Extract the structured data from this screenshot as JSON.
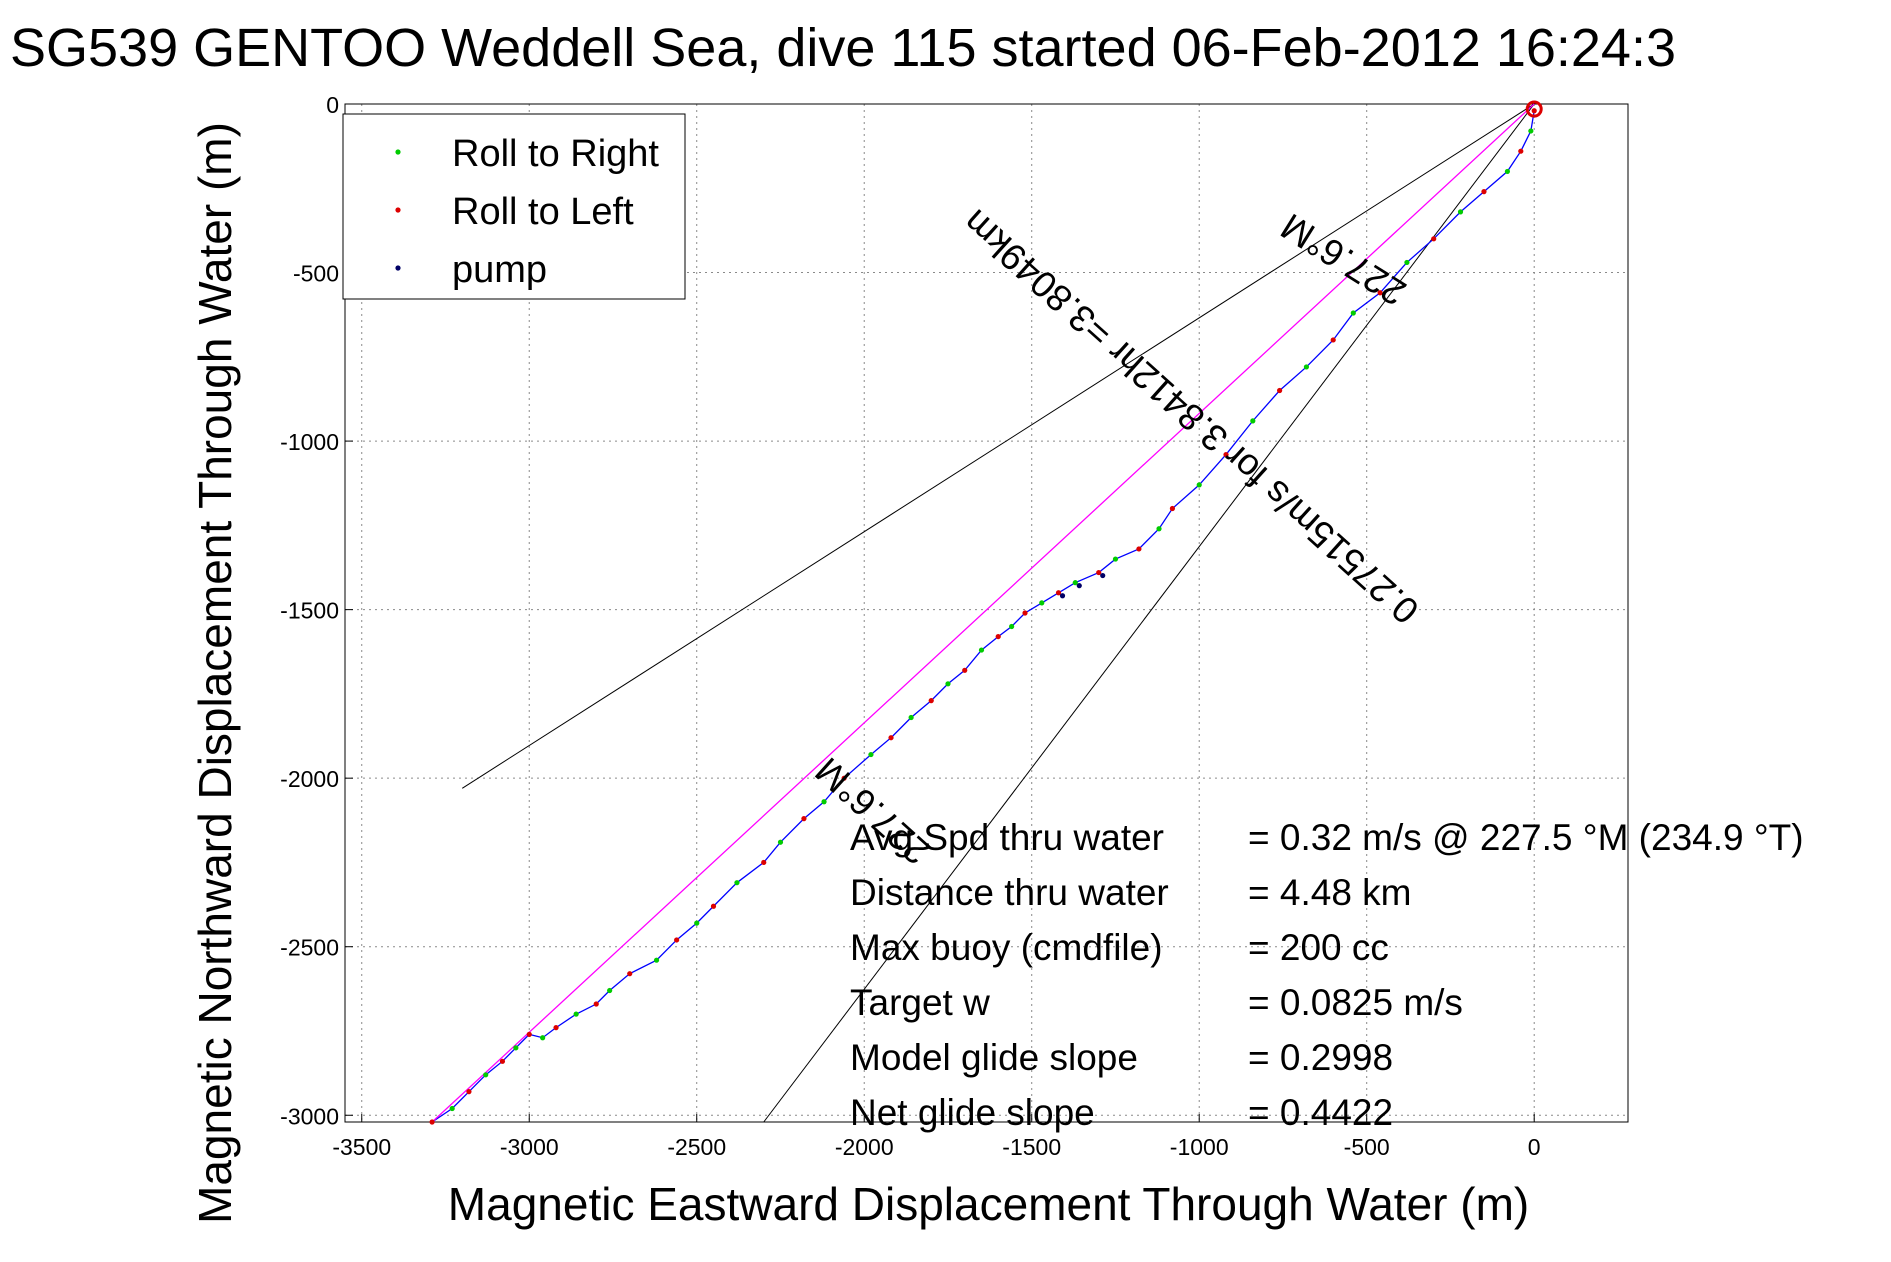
{
  "chart_data": {
    "type": "line",
    "title": "SG539 GENTOO Weddell Sea, dive 115 started 06-Feb-2012 16:24:3",
    "xlabel": "Magnetic Eastward Displacement Through Water (m)",
    "ylabel": "Magnetic Northward Displacement Through Water (m)",
    "xlim": [
      -3550,
      280
    ],
    "ylim": [
      -3020,
      0
    ],
    "xticks": [
      -3500,
      -3000,
      -2500,
      -2000,
      -1500,
      -1000,
      -500,
      0
    ],
    "yticks": [
      0,
      -500,
      -1000,
      -1500,
      -2000,
      -2500,
      -3000
    ],
    "grid": true,
    "legend_position": "top-left",
    "legend": [
      {
        "label": "Roll to Right",
        "color": "#00cc00"
      },
      {
        "label": "Roll to Left",
        "color": "#dd0000"
      },
      {
        "label": "pump",
        "color": "#000066"
      }
    ],
    "series": [
      {
        "name": "track",
        "color": "#0000ff",
        "x": [
          0,
          -10,
          -40,
          -80,
          -150,
          -220,
          -300,
          -380,
          -460,
          -540,
          -600,
          -680,
          -760,
          -840,
          -920,
          -1000,
          -1080,
          -1120,
          -1180,
          -1250,
          -1300,
          -1370,
          -1420,
          -1470,
          -1520,
          -1560,
          -1600,
          -1650,
          -1700,
          -1750,
          -1800,
          -1860,
          -1920,
          -1980,
          -2060,
          -2120,
          -2180,
          -2250,
          -2300,
          -2380,
          -2450,
          -2500,
          -2560,
          -2620,
          -2700,
          -2760,
          -2800,
          -2860,
          -2920,
          -2960,
          -3000,
          -3040,
          -3080,
          -3130,
          -3180,
          -3230,
          -3290
        ],
        "y": [
          -20,
          -80,
          -140,
          -200,
          -260,
          -320,
          -400,
          -470,
          -560,
          -620,
          -700,
          -780,
          -850,
          -940,
          -1040,
          -1130,
          -1200,
          -1260,
          -1320,
          -1350,
          -1390,
          -1420,
          -1450,
          -1480,
          -1510,
          -1550,
          -1580,
          -1620,
          -1680,
          -1720,
          -1770,
          -1820,
          -1880,
          -1930,
          -2000,
          -2070,
          -2120,
          -2190,
          -2250,
          -2310,
          -2380,
          -2430,
          -2480,
          -2540,
          -2580,
          -2630,
          -2670,
          -2700,
          -2740,
          -2770,
          -2760,
          -2800,
          -2840,
          -2880,
          -2930,
          -2980,
          -3020
        ]
      },
      {
        "name": "227.6°M",
        "color": "#ff00ff",
        "x": [
          0,
          -3290
        ],
        "y": [
          0,
          -3020
        ]
      }
    ],
    "fan_lines": [
      {
        "x": [
          0,
          -3200
        ],
        "y": [
          0,
          -2030
        ]
      },
      {
        "x": [
          0,
          -2300
        ],
        "y": [
          0,
          -3020
        ]
      }
    ],
    "annotations": [
      {
        "text": "227.6°M",
        "x": -1950,
        "y": -2070,
        "angle_deg": 222
      },
      {
        "text": "227.6°M",
        "x": -550,
        "y": -430,
        "angle_deg": 212
      },
      {
        "text": "0.27515m/s for 3.8412hr =3.8049km",
        "x": -1000,
        "y": -900,
        "angle_deg": 222
      }
    ],
    "stats": [
      {
        "label": "Avg Spd thru water",
        "value": "=  0.32 m/s @ 227.5 °M (234.9 °T)"
      },
      {
        "label": "Distance thru water",
        "value": "=  4.48 km"
      },
      {
        "label": "Max buoy (cmdfile)",
        "value": "= 200 cc"
      },
      {
        "label": "Target w",
        "value": "= 0.0825 m/s"
      },
      {
        "label": "Model glide slope",
        "value": "= 0.2998"
      },
      {
        "label": "Net glide slope",
        "value": "= 0.4422"
      }
    ]
  }
}
